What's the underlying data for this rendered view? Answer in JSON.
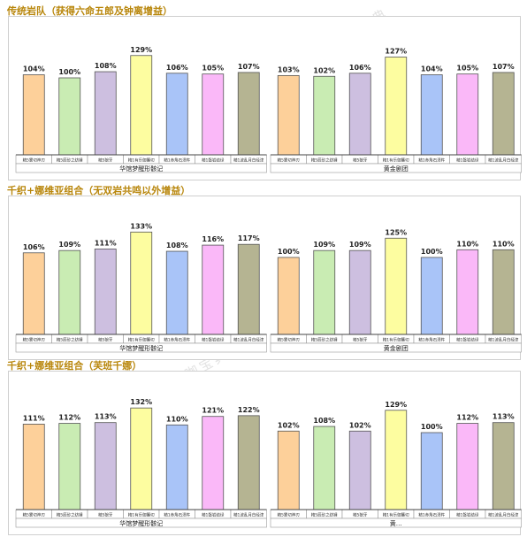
{
  "chart_data": [
    {
      "type": "bar",
      "title": "传统岩队（获得六命五郎及钟离增益）",
      "groups": [
        {
          "label": "华馆梦醒形骸记",
          "categories": [
            "精5雾切神刃",
            "精5辰砂之纺锤",
            "精5狼牙",
            "精1有乐御簾切",
            "精1赤角石溃杵",
            "精1磐岩结绿",
            "精1波乱月白经津"
          ],
          "values": [
            104,
            100,
            108,
            129,
            106,
            105,
            107
          ]
        },
        {
          "label": "黄金剧团",
          "categories": [
            "精5雾切神刃",
            "精5辰砂之纺锤",
            "精5狼牙",
            "精1有乐御簾切",
            "精1赤角石溃杵",
            "精1磐岩结绿",
            "精1波乱月白经津"
          ],
          "values": [
            103,
            102,
            106,
            127,
            104,
            105,
            107
          ]
        }
      ],
      "value_suffix": "%"
    },
    {
      "type": "bar",
      "title": "千织+娜维亚组合（无双岩共鸣以外增益）",
      "groups": [
        {
          "label": "华馆梦醒形骸记",
          "categories": [
            "精5雾切神刃",
            "精5辰砂之纺锤",
            "精5狼牙",
            "精1有乐御簾切",
            "精1赤角石溃杵",
            "精1磐岩结绿",
            "精1波乱月白经津"
          ],
          "values": [
            106,
            109,
            111,
            133,
            108,
            116,
            117
          ]
        },
        {
          "label": "黄金剧团",
          "categories": [
            "精5雾切神刃",
            "精5辰砂之纺锤",
            "精5狼牙",
            "精1有乐御簾切",
            "精1赤角石溃杵",
            "精1磐岩结绿",
            "精1波乱月白经津"
          ],
          "values": [
            100,
            109,
            109,
            125,
            100,
            110,
            110
          ]
        }
      ],
      "value_suffix": "%"
    },
    {
      "type": "bar",
      "title": "千织+娜维亚组合（芙班千娜）",
      "groups": [
        {
          "label": "华馆梦醒形骸记",
          "categories": [
            "精5雾切神刃",
            "精5辰砂之纺锤",
            "精5狼牙",
            "精1有乐御簾切",
            "精1赤角石溃杵",
            "精1磐岩结绿",
            "精1波乱月白经津"
          ],
          "values": [
            111,
            112,
            113,
            132,
            110,
            121,
            122
          ]
        },
        {
          "label": "黄…",
          "categories": [
            "精5雾切神刃",
            "精5辰砂之纺锤",
            "精5狼牙",
            "精1有乐御簾切",
            "精1赤角石溃杵",
            "精1磐岩结绿",
            "精1波乱月白经津"
          ],
          "values": [
            102,
            108,
            102,
            129,
            100,
            112,
            113
          ]
        }
      ],
      "value_suffix": "%"
    }
  ],
  "colors": [
    "#fdd09a",
    "#c9ecb3",
    "#cdbfe0",
    "#fdfda0",
    "#a9c4f8",
    "#fab8f8",
    "#b5b492"
  ],
  "watermark": "玩咖宝典"
}
